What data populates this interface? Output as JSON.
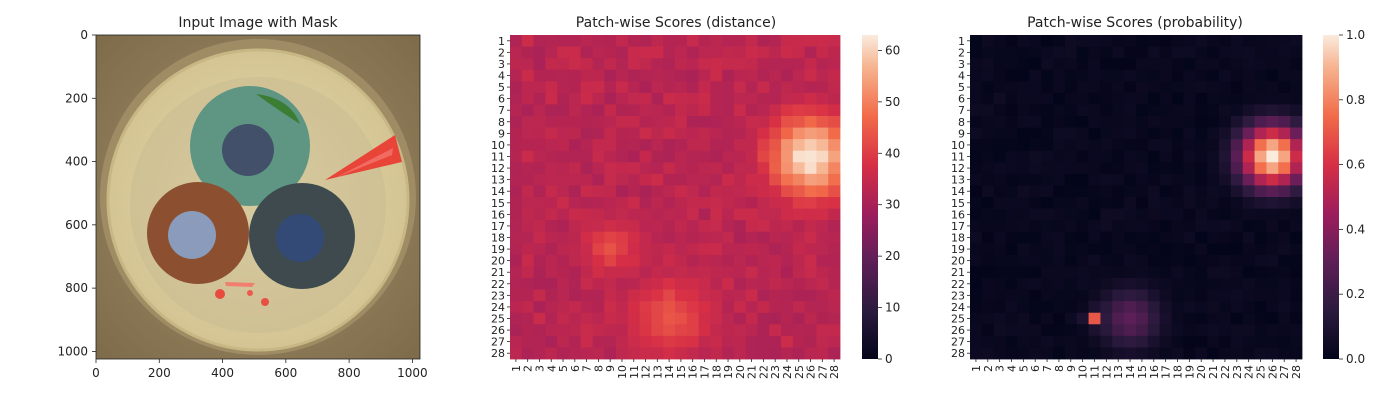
{
  "figure": {
    "panels": [
      {
        "title": "Input Image with Mask"
      },
      {
        "title": "Patch-wise Scores (distance)"
      },
      {
        "title": "Patch-wise Scores (probability)"
      }
    ]
  },
  "chart_data": [
    {
      "type": "image",
      "title": "Input Image with Mask",
      "xlim": [
        0,
        1024
      ],
      "ylim": [
        1024,
        0
      ],
      "xticks": [
        0,
        200,
        400,
        600,
        800,
        1000
      ],
      "yticks": [
        0,
        200,
        400,
        600,
        800,
        1000
      ],
      "content": "cable cross-section with three insulated conductors (green, brown, blue-grey) on tan background; red mask overlays near right edge and bottom center"
    },
    {
      "type": "heatmap",
      "title": "Patch-wise Scores (distance)",
      "rows": 28,
      "cols": 28,
      "xticklabels": [
        "1",
        "2",
        "3",
        "4",
        "5",
        "6",
        "7",
        "8",
        "9",
        "10",
        "11",
        "12",
        "13",
        "14",
        "15",
        "16",
        "17",
        "18",
        "19",
        "20",
        "21",
        "22",
        "23",
        "24",
        "25",
        "26",
        "27",
        "28"
      ],
      "yticklabels": [
        "1",
        "2",
        "3",
        "4",
        "5",
        "6",
        "7",
        "8",
        "9",
        "10",
        "11",
        "12",
        "13",
        "14",
        "15",
        "16",
        "17",
        "18",
        "19",
        "20",
        "21",
        "22",
        "23",
        "24",
        "25",
        "26",
        "27",
        "28"
      ],
      "colormap": "rocket",
      "vmin": 0,
      "vmax": 63,
      "colorbar_ticks": [
        0,
        10,
        20,
        30,
        40,
        50,
        60
      ],
      "baseline": 32,
      "hotspots": [
        {
          "row": 11,
          "col": 26,
          "peak": 63,
          "spread": 2.4
        },
        {
          "row": 25,
          "col": 14,
          "peak": 44,
          "spread": 2.3
        },
        {
          "row": 19,
          "col": 9,
          "peak": 42,
          "spread": 1.6
        }
      ]
    },
    {
      "type": "heatmap",
      "title": "Patch-wise Scores (probability)",
      "rows": 28,
      "cols": 28,
      "xticklabels": [
        "1",
        "2",
        "3",
        "4",
        "5",
        "6",
        "7",
        "8",
        "9",
        "10",
        "11",
        "12",
        "13",
        "14",
        "15",
        "16",
        "17",
        "18",
        "19",
        "20",
        "21",
        "22",
        "23",
        "24",
        "25",
        "26",
        "27",
        "28"
      ],
      "yticklabels": [
        "1",
        "2",
        "3",
        "4",
        "5",
        "6",
        "7",
        "8",
        "9",
        "10",
        "11",
        "12",
        "13",
        "14",
        "15",
        "16",
        "17",
        "18",
        "19",
        "20",
        "21",
        "22",
        "23",
        "24",
        "25",
        "26",
        "27",
        "28"
      ],
      "colormap": "rocket",
      "vmin": 0,
      "vmax": 1.0,
      "colorbar_ticks": [
        "0.0",
        "0.2",
        "0.4",
        "0.6",
        "0.8",
        "1.0"
      ],
      "baseline": 0.0,
      "hotspots": [
        {
          "row": 11,
          "col": 26,
          "peak": 1.0,
          "spread": 1.9
        },
        {
          "row": 25,
          "col": 14,
          "peak": 0.3,
          "spread": 1.8
        },
        {
          "row": 25,
          "col": 11,
          "peak": 0.7,
          "spread": 0.5
        }
      ]
    }
  ]
}
